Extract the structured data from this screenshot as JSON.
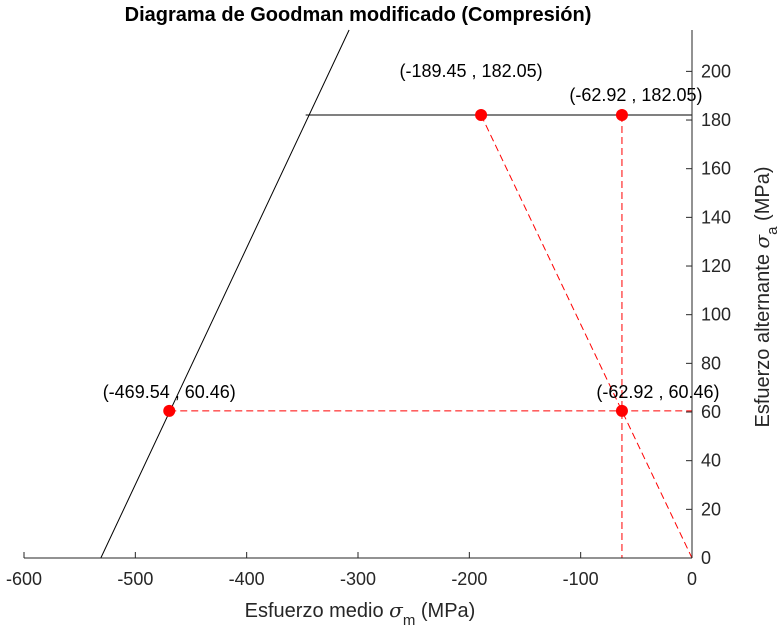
{
  "chart_data": {
    "type": "line",
    "title": "Diagrama de Goodman modificado (Compresión)",
    "xlabel": {
      "prefix": "Esfuerzo medio ",
      "symbol": "σ",
      "subscript": "m",
      "suffix": " (MPa)"
    },
    "ylabel": {
      "prefix": "Esfuerzo alternante ",
      "symbol": "σ",
      "subscript": "a",
      "suffix": " (MPa)"
    },
    "xlim": [
      -600,
      0
    ],
    "ylim": [
      0,
      217
    ],
    "xticks": [
      -600,
      -500,
      -400,
      -300,
      -200,
      -100,
      0
    ],
    "yticks": [
      0,
      20,
      40,
      60,
      80,
      100,
      120,
      140,
      160,
      180,
      200
    ],
    "y_axis_position": "right",
    "grid": false,
    "colors": {
      "envelope": "#000000",
      "construction": "#ff0000",
      "axis": "#262626"
    },
    "series": [
      {
        "kind": "envelope-diagonal",
        "style": "solid",
        "color": "#000000",
        "x": [
          -531,
          -308
        ],
        "y": [
          0,
          217
        ]
      },
      {
        "kind": "envelope-horizontal",
        "style": "solid",
        "color": "#000000",
        "x": [
          -347,
          0
        ],
        "y": [
          182.05,
          182.05
        ]
      },
      {
        "kind": "load-line",
        "style": "dashed",
        "color": "#ff0000",
        "x": [
          -189.45,
          0
        ],
        "y": [
          182.05,
          0
        ]
      },
      {
        "kind": "vertical-line",
        "style": "dashed",
        "color": "#ff0000",
        "x": [
          -62.92,
          -62.92
        ],
        "y": [
          182.05,
          0
        ]
      },
      {
        "kind": "horizontal-line",
        "style": "dashed",
        "color": "#ff0000",
        "x": [
          -469.54,
          0
        ],
        "y": [
          60.46,
          60.46
        ]
      }
    ],
    "points": [
      {
        "x": -189.45,
        "y": 182.05,
        "label": "(-189.45 , 182.05)"
      },
      {
        "x": -62.92,
        "y": 182.05,
        "label": "(-62.92 , 182.05)"
      },
      {
        "x": -469.54,
        "y": 60.46,
        "label": "(-469.54 , 60.46)"
      },
      {
        "x": -62.92,
        "y": 60.46,
        "label": "(-62.92 , 60.46)"
      }
    ]
  }
}
